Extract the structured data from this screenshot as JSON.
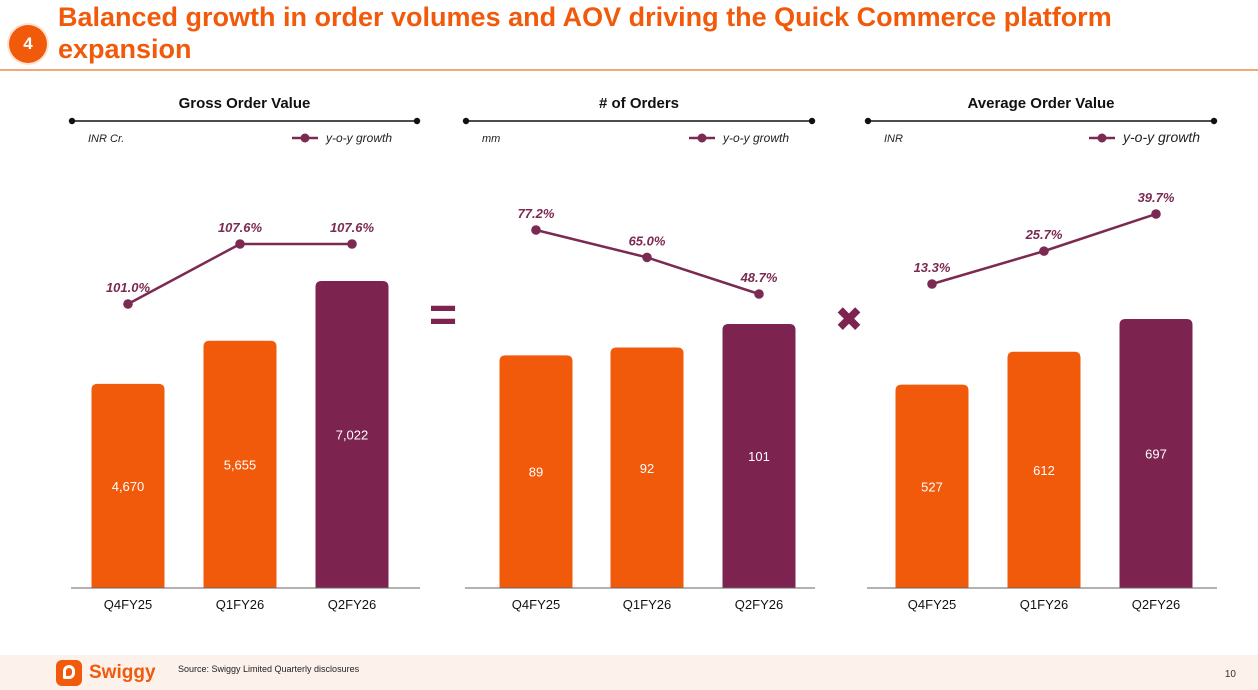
{
  "header": {
    "section_number": "4",
    "title": "Balanced growth in order volumes and AOV driving the Quick Commerce platform expansion"
  },
  "colors": {
    "accent_orange": "#f15a0b",
    "plum": "#7d2350",
    "line_plum": "#7b2a52"
  },
  "operators": [
    "=",
    "✖"
  ],
  "chart_data": [
    {
      "type": "bar",
      "title": "Gross Order Value",
      "unit_label": "INR Cr.",
      "legend": "y-o-y growth",
      "categories": [
        "Q4FY25",
        "Q1FY26",
        "Q2FY26"
      ],
      "values": [
        4670,
        5655,
        7022
      ],
      "value_labels": [
        "4,670",
        "5,655",
        "7,022"
      ],
      "bar_colors": [
        "#f15a0b",
        "#f15a0b",
        "#7d2350"
      ],
      "growth": {
        "name": "y-o-y growth",
        "values": [
          101.0,
          107.6,
          107.6
        ],
        "labels": [
          "101.0%",
          "107.6%",
          "107.6%"
        ]
      }
    },
    {
      "type": "bar",
      "title": "# of Orders",
      "unit_label": "mm",
      "legend": "y-o-y growth",
      "categories": [
        "Q4FY25",
        "Q1FY26",
        "Q2FY26"
      ],
      "values": [
        89,
        92,
        101
      ],
      "value_labels": [
        "89",
        "92",
        "101"
      ],
      "bar_colors": [
        "#f15a0b",
        "#f15a0b",
        "#7d2350"
      ],
      "growth": {
        "name": "y-o-y growth",
        "values": [
          77.2,
          65.0,
          48.7
        ],
        "labels": [
          "77.2%",
          "65.0%",
          "48.7%"
        ]
      }
    },
    {
      "type": "bar",
      "title": "Average Order Value",
      "unit_label": "INR",
      "legend": "y-o-y growth",
      "categories": [
        "Q4FY25",
        "Q1FY26",
        "Q2FY26"
      ],
      "values": [
        527,
        612,
        697
      ],
      "value_labels": [
        "527",
        "612",
        "697"
      ],
      "bar_colors": [
        "#f15a0b",
        "#f15a0b",
        "#7d2350"
      ],
      "growth": {
        "name": "y-o-y growth",
        "values": [
          13.3,
          25.7,
          39.7
        ],
        "labels": [
          "13.3%",
          "25.7%",
          "39.7%"
        ]
      }
    }
  ],
  "footer": {
    "brand": "Swiggy",
    "source": "Source: Swiggy Limited Quarterly disclosures",
    "page_number": "10"
  }
}
